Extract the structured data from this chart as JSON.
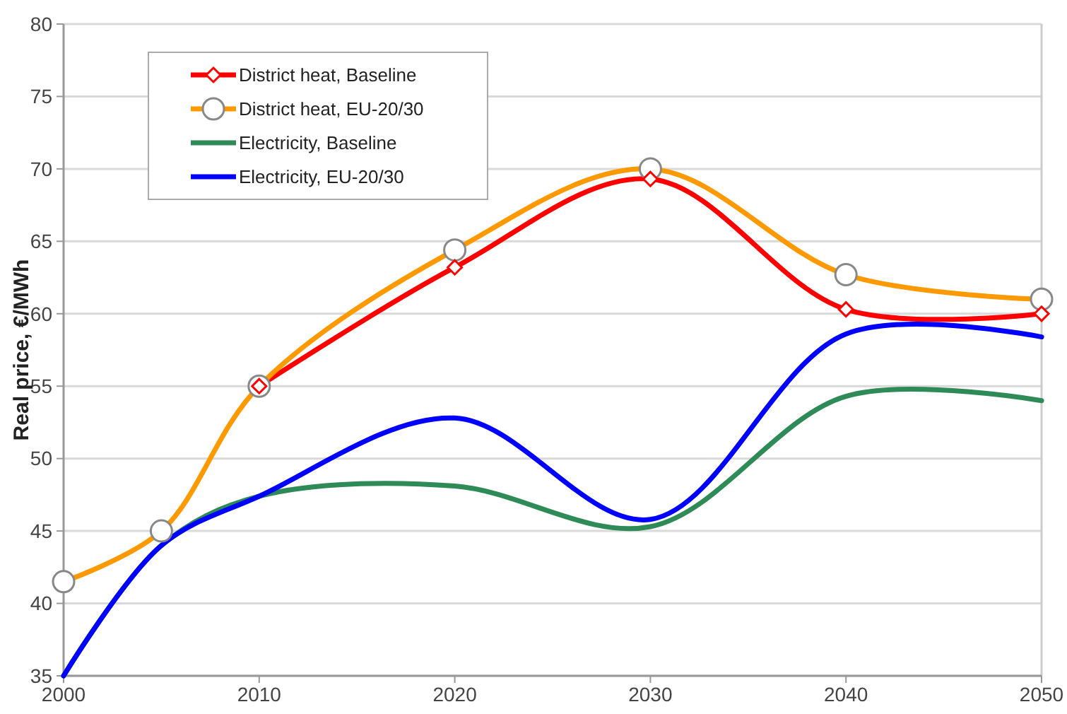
{
  "chart_data": {
    "type": "line",
    "ylabel": "Real price, €/MWh",
    "x": [
      2000,
      2005,
      2010,
      2020,
      2030,
      2040,
      2050
    ],
    "xlim": [
      2000,
      2050
    ],
    "xticks": [
      2000,
      2010,
      2020,
      2030,
      2040,
      2050
    ],
    "ylim": [
      35,
      80
    ],
    "yticks": [
      35,
      40,
      45,
      50,
      55,
      60,
      65,
      70,
      75,
      80
    ],
    "grid": "y",
    "legend": "top left",
    "series": [
      {
        "name": "District heat, Baseline",
        "color": "#ff0000",
        "marker": "diamond",
        "values": [
          null,
          null,
          55,
          63.2,
          69.3,
          60.3,
          60
        ]
      },
      {
        "name": "District heat, EU-20/30",
        "color": "#ff9900",
        "marker": "circle",
        "values": [
          41.5,
          45,
          55,
          64.4,
          70,
          62.7,
          61
        ]
      },
      {
        "name": "Electricity, Baseline",
        "color": "#2e8b57",
        "marker": "none",
        "values": [
          35,
          44,
          47.4,
          48.1,
          45.3,
          54.3,
          54
        ]
      },
      {
        "name": "Electricity, EU-20/30",
        "color": "#0000ff",
        "marker": "none",
        "values": [
          35,
          44,
          47.4,
          52.8,
          45.8,
          58.6,
          58.4
        ]
      }
    ]
  }
}
